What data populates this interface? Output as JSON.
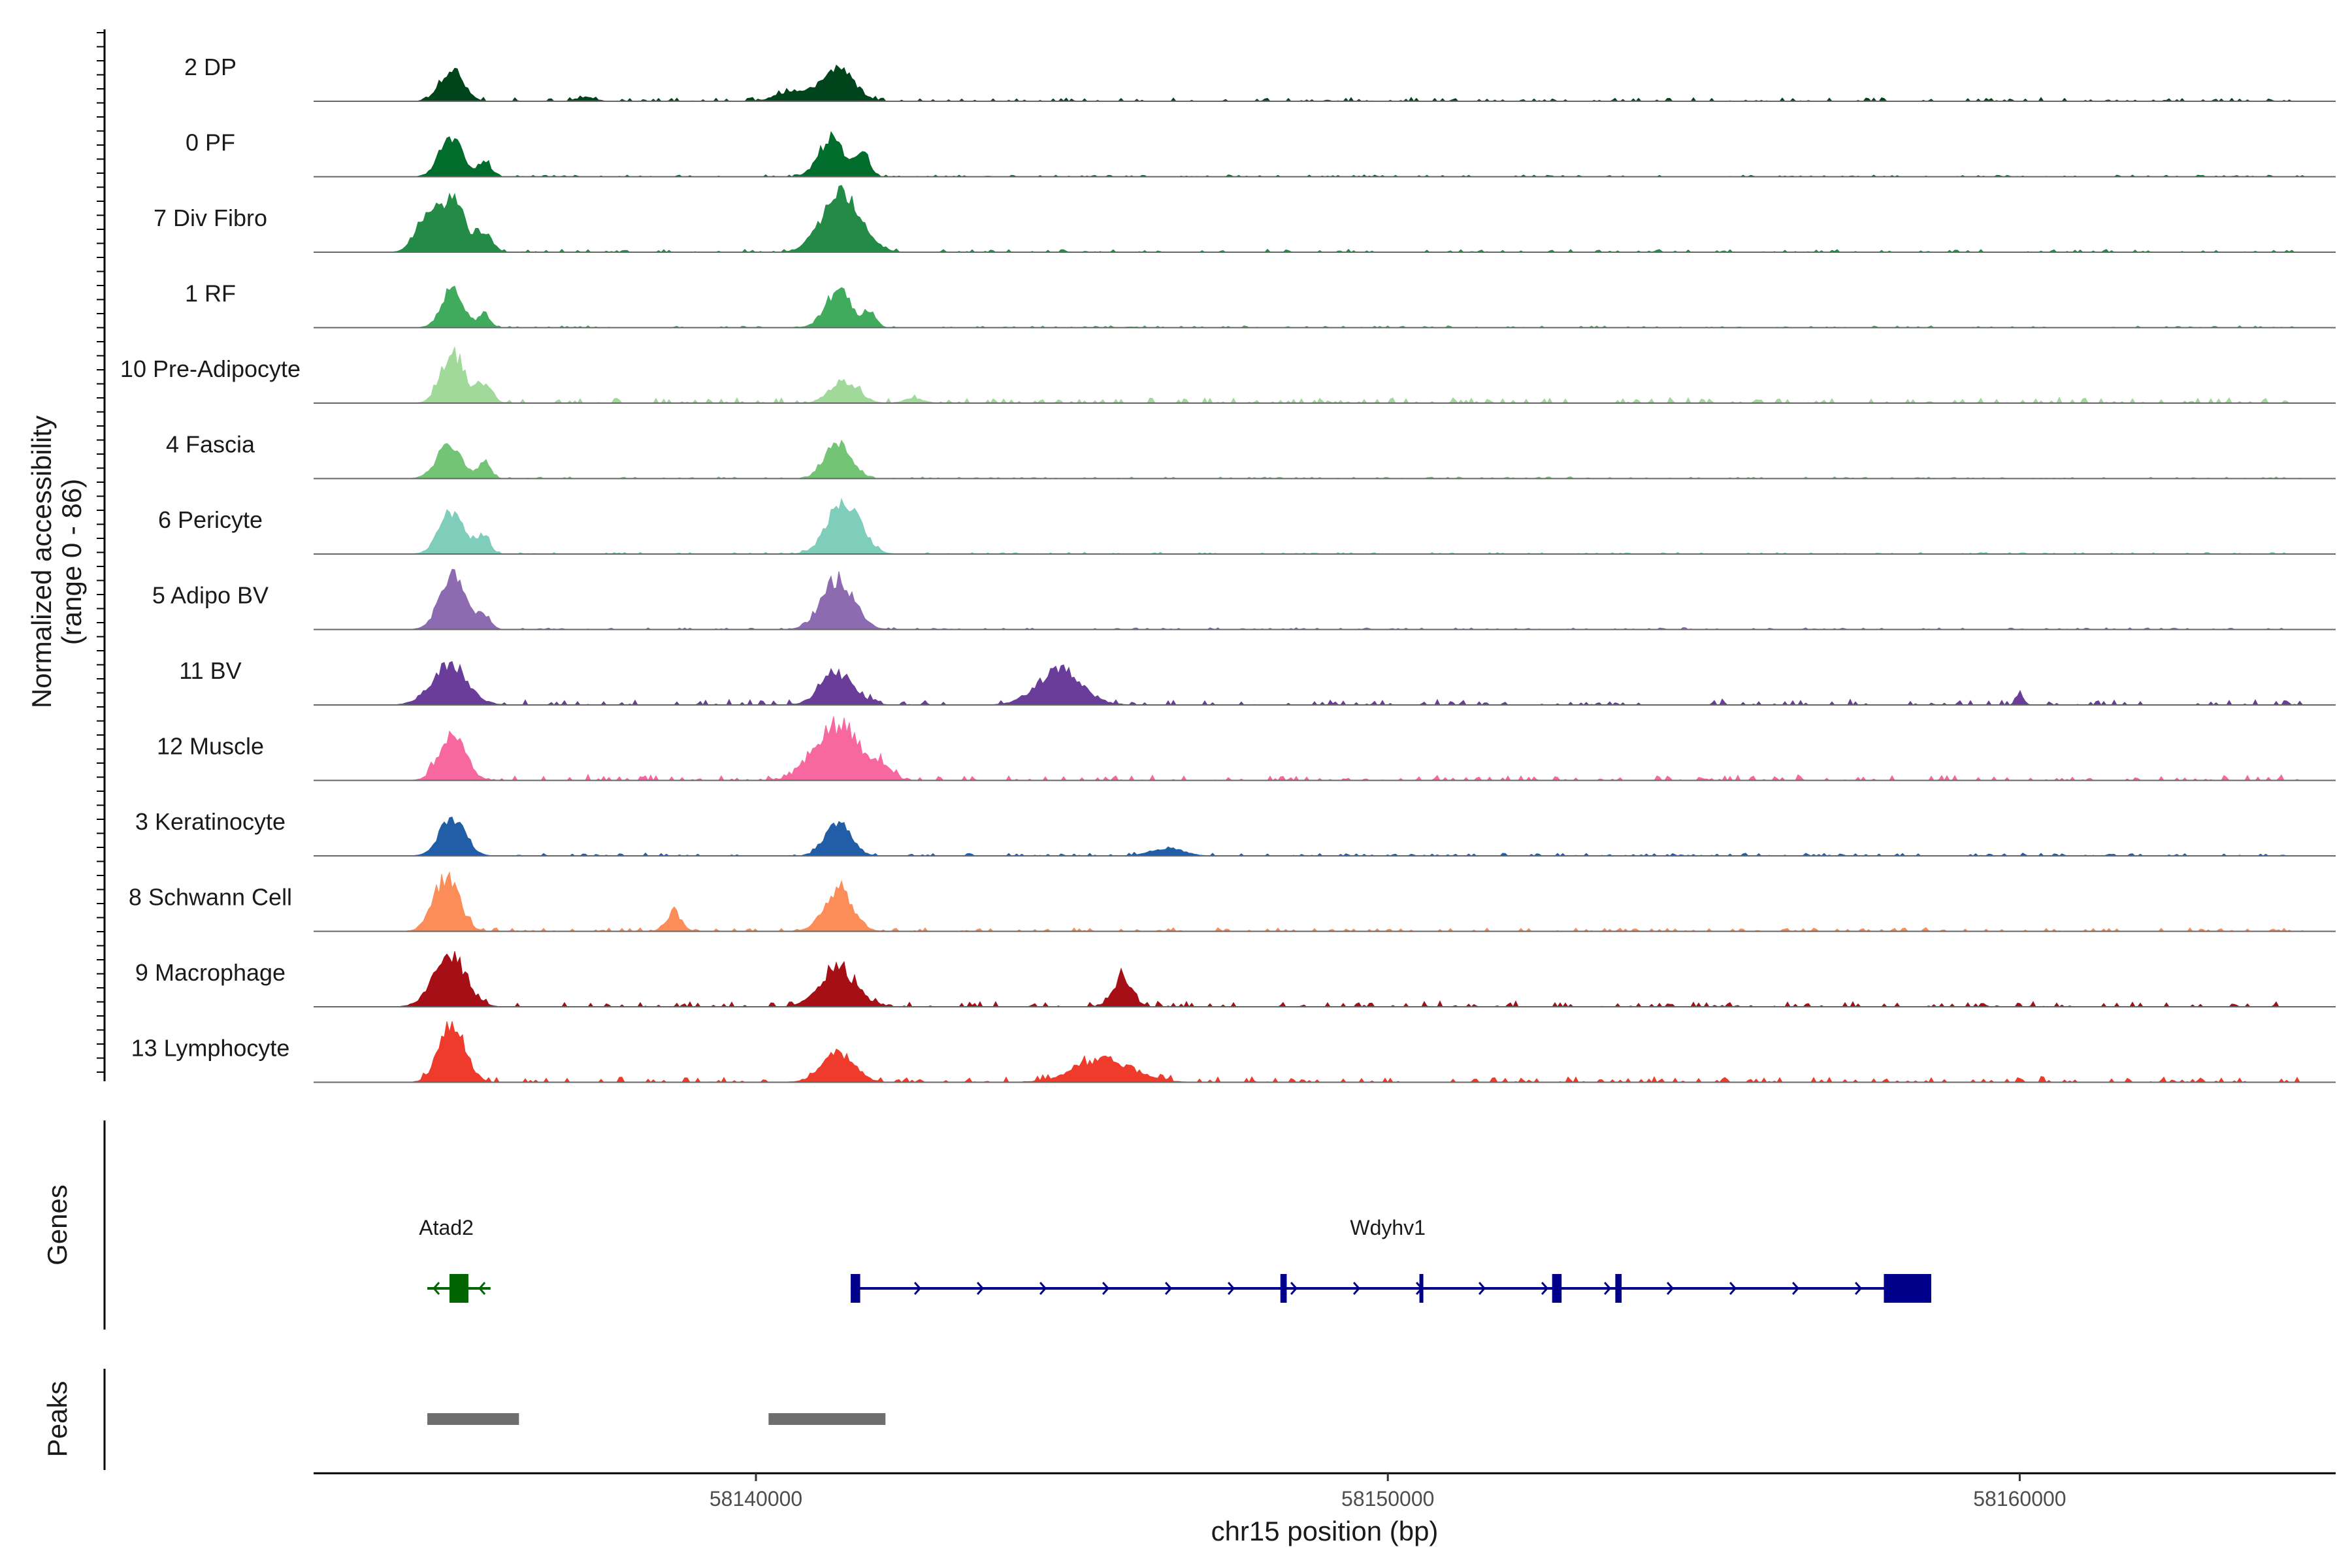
{
  "chart_data": {
    "type": "area",
    "x_axis": {
      "label": "chr15 position (bp)",
      "range": [
        58133000,
        58165000
      ],
      "ticks": [
        58140000,
        58150000,
        58160000
      ]
    },
    "coverage_axis": {
      "label_line1": "Normalized accessibility",
      "label_line2": "(range 0 - 86)",
      "range": [
        0,
        86
      ]
    },
    "tracks": [
      {
        "name": "2 DP",
        "color": "#00441b",
        "peaks": [
          [
            58135180,
            42,
            180
          ],
          [
            58141300,
            46,
            240
          ],
          [
            58140600,
            14,
            250
          ],
          [
            58137300,
            5,
            150
          ]
        ],
        "bg": 2
      },
      {
        "name": "0 PF",
        "color": "#006d2c",
        "peaks": [
          [
            58135180,
            52,
            180
          ],
          [
            58135700,
            20,
            100
          ],
          [
            58141200,
            50,
            200
          ],
          [
            58141700,
            30,
            100
          ]
        ],
        "bg": 1
      },
      {
        "name": "7 Div Fibro",
        "color": "#238b45",
        "peaks": [
          [
            58135150,
            72,
            220
          ],
          [
            58134700,
            30,
            150
          ],
          [
            58135700,
            25,
            120
          ],
          [
            58141350,
            76,
            300
          ]
        ],
        "bg": 1.5
      },
      {
        "name": "1 RF",
        "color": "#41ab5d",
        "peaks": [
          [
            58135200,
            48,
            170
          ],
          [
            58135700,
            18,
            90
          ],
          [
            58141300,
            48,
            200
          ],
          [
            58141800,
            20,
            100
          ]
        ],
        "bg": 1
      },
      {
        "name": "10 Pre-Adipocyte",
        "color": "#a1d99b",
        "peaks": [
          [
            58135200,
            65,
            180
          ],
          [
            58135700,
            25,
            120
          ],
          [
            58141400,
            28,
            220
          ],
          [
            58142500,
            6,
            150
          ]
        ],
        "bg": 3
      },
      {
        "name": "4 Fascia",
        "color": "#74c476",
        "peaks": [
          [
            58135150,
            42,
            200
          ],
          [
            58135700,
            20,
            100
          ],
          [
            58141300,
            48,
            200
          ]
        ],
        "bg": 1
      },
      {
        "name": "6 Pericyte",
        "color": "#7fcdbb",
        "peaks": [
          [
            58135200,
            55,
            200
          ],
          [
            58135700,
            22,
            100
          ],
          [
            58141400,
            70,
            250
          ]
        ],
        "bg": 1
      },
      {
        "name": "5 Adipo BV",
        "color": "#8c6bb1",
        "peaks": [
          [
            58135200,
            72,
            200
          ],
          [
            58135700,
            18,
            100
          ],
          [
            58141300,
            65,
            250
          ]
        ],
        "bg": 1
      },
      {
        "name": "11 BV",
        "color": "#6a3d9a",
        "peaks": [
          [
            58135150,
            50,
            280
          ],
          [
            58141300,
            40,
            260
          ],
          [
            58144800,
            45,
            350
          ],
          [
            58160000,
            14,
            60
          ]
        ],
        "bg": 3
      },
      {
        "name": "12 Muscle",
        "color": "#f768a1",
        "peaks": [
          [
            58135200,
            60,
            200
          ],
          [
            58141300,
            72,
            350
          ],
          [
            58142000,
            15,
            150
          ]
        ],
        "bg": 3
      },
      {
        "name": "3 Keratinocyte",
        "color": "#225ea8",
        "peaks": [
          [
            58135200,
            50,
            200
          ],
          [
            58141300,
            45,
            200
          ],
          [
            58146500,
            10,
            250
          ]
        ],
        "bg": 1.5
      },
      {
        "name": "8 Schwann Cell",
        "color": "#fc8d59",
        "peaks": [
          [
            58135100,
            70,
            200
          ],
          [
            58138700,
            25,
            120
          ],
          [
            58141300,
            55,
            220
          ]
        ],
        "bg": 2
      },
      {
        "name": "9 Macrophage",
        "color": "#a50f15",
        "peaks": [
          [
            58135150,
            68,
            250
          ],
          [
            58141300,
            50,
            280
          ],
          [
            58145800,
            38,
            150
          ]
        ],
        "bg": 3
      },
      {
        "name": "13 Lymphocyte",
        "color": "#ef3b2c",
        "peaks": [
          [
            58135200,
            76,
            200
          ],
          [
            58141300,
            38,
            250
          ],
          [
            58145500,
            30,
            450
          ]
        ],
        "bg": 3
      }
    ],
    "genes": [
      {
        "name": "Atad2",
        "strand": "-",
        "color": "#006400",
        "start": 58134800,
        "end": 58135800,
        "label_x": 58135100,
        "exons": [
          [
            58135150,
            58135450
          ]
        ]
      },
      {
        "name": "Wdyhv1",
        "strand": "+",
        "color": "#00008b",
        "start": 58141500,
        "end": 58158600,
        "label_x": 58150000,
        "exons": [
          [
            58141500,
            58141650
          ],
          [
            58148300,
            58148400
          ],
          [
            58150500,
            58150550
          ],
          [
            58152600,
            58152750
          ],
          [
            58153600,
            58153700
          ],
          [
            58157850,
            58158600
          ]
        ]
      }
    ],
    "peak_regions": [
      [
        58134800,
        58136250
      ],
      [
        58140200,
        58142050
      ]
    ],
    "panel_titles": {
      "genes": "Genes",
      "peaks": "Peaks"
    }
  }
}
